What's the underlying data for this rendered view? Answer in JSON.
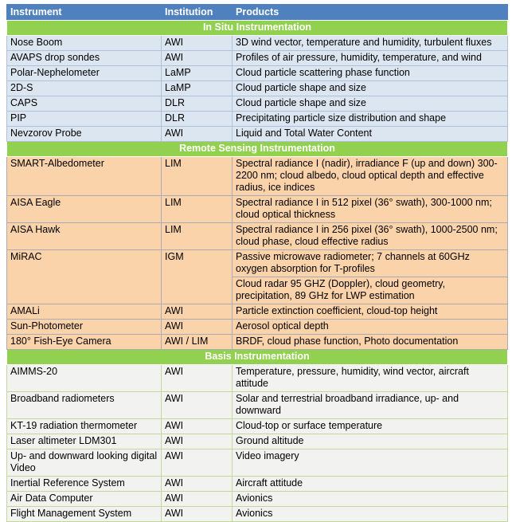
{
  "colors": {
    "header_bg": "#4E81BD",
    "header_text": "#FFFFFF",
    "section_bg": "#92D050",
    "section_text": "#FFFFFF",
    "insitu_bg": "#DCE6F1",
    "insitu_border": "#AFC0D8",
    "remote_bg": "#FBD3AB",
    "remote_border": "#ABABB4",
    "basis_bg": "#F2F2F0",
    "basis_border": "#C3D69B",
    "body_text": "#000000"
  },
  "table": {
    "columns": [
      "Instrument",
      "Institution",
      "Products"
    ],
    "sections": [
      {
        "title": "In Situ Instrumentation",
        "theme": "insitu",
        "rows": [
          {
            "instrument": "Nose Boom",
            "institution": "AWI",
            "products": [
              "3D wind vector, temperature and humidity, turbulent fluxes"
            ]
          },
          {
            "instrument": "AVAPS drop sondes",
            "institution": "AWI",
            "products": [
              "Profiles of air pressure, humidity, temperature, and wind"
            ]
          },
          {
            "instrument": "Polar-Nephelometer",
            "institution": "LaMP",
            "products": [
              "Cloud particle scattering phase function"
            ]
          },
          {
            "instrument": "2D-S",
            "institution": "LaMP",
            "products": [
              "Cloud particle shape and size"
            ]
          },
          {
            "instrument": "CAPS",
            "institution": "DLR",
            "products": [
              "Cloud particle shape and size"
            ]
          },
          {
            "instrument": "PIP",
            "institution": "DLR",
            "products": [
              "Precipitating particle size distribution and shape"
            ]
          },
          {
            "instrument": "Nevzorov Probe",
            "institution": "AWI",
            "products": [
              "Liquid and Total Water Content"
            ]
          }
        ]
      },
      {
        "title": "Remote Sensing Instrumentation",
        "theme": "remote",
        "rows": [
          {
            "instrument": "SMART-Albedometer",
            "institution": "LIM",
            "products": [
              "Spectral radiance I (nadir), irradiance F (up and down) 300-2200 nm; cloud albedo, cloud optical depth and effective radius, ice indices"
            ]
          },
          {
            "instrument": "AISA Eagle",
            "institution": "LIM",
            "products": [
              "Spectral radiance I in 512 pixel (36° swath), 300-1000 nm; cloud optical thickness"
            ]
          },
          {
            "instrument": "AISA Hawk",
            "institution": "LIM",
            "products": [
              "Spectral radiance I in 256 pixel (36° swath), 1000-2500 nm; cloud phase, cloud effective radius"
            ]
          },
          {
            "instrument": "MiRAC",
            "institution": "IGM",
            "products": [
              "Passive microwave radiometer; 7 channels at 60GHz oxygen absorption for T-profiles",
              "Cloud radar 95 GHZ (Doppler), cloud geometry, precipitation, 89 GHz for LWP estimation"
            ]
          },
          {
            "instrument": "AMALi",
            "institution": "AWI",
            "products": [
              "Particle extinction coefficient, cloud-top height"
            ]
          },
          {
            "instrument": "Sun-Photometer",
            "institution": "AWI",
            "products": [
              "Aerosol optical depth"
            ]
          },
          {
            "instrument": "180° Fish-Eye Camera",
            "institution": "AWI / LIM",
            "products": [
              "BRDF, cloud phase function, Photo documentation"
            ]
          }
        ]
      },
      {
        "title": "Basis Instrumentation",
        "theme": "basis",
        "rows": [
          {
            "instrument": "AIMMS-20",
            "institution": "AWI",
            "products": [
              "Temperature, pressure, humidity, wind vector, aircraft attitude"
            ]
          },
          {
            "instrument": "Broadband radiometers",
            "institution": "AWI",
            "products": [
              "Solar and terrestrial broadband irradiance, up- and downward"
            ]
          },
          {
            "instrument": "KT-19 radiation thermometer",
            "institution": "AWI",
            "products": [
              "Cloud-top or surface temperature"
            ]
          },
          {
            "instrument": "Laser altimeter LDM301",
            "institution": "AWI",
            "products": [
              "Ground altitude"
            ]
          },
          {
            "instrument": "Up- and downward looking digital Video",
            "institution": "AWI",
            "products": [
              "Video imagery"
            ]
          },
          {
            "instrument": "Inertial Reference System",
            "institution": "AWI",
            "products": [
              "Aircraft attitude"
            ]
          },
          {
            "instrument": "Air Data Computer",
            "institution": "AWI",
            "products": [
              "Avionics"
            ]
          },
          {
            "instrument": "Flight Management System",
            "institution": "AWI",
            "products": [
              "Avionics"
            ]
          }
        ]
      }
    ]
  }
}
